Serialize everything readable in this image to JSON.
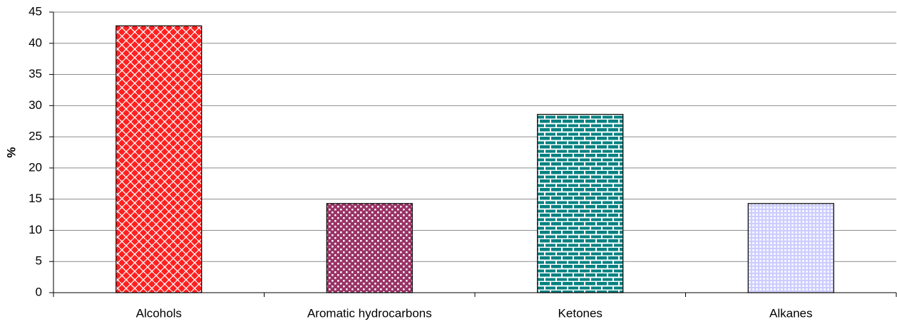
{
  "chart_data": {
    "type": "bar",
    "y_label": "%",
    "categories": [
      "Alcohols",
      "Aromatic hydrocarbons",
      "Ketones",
      "Alkanes"
    ],
    "values": [
      42.8,
      14.3,
      28.6,
      14.3
    ],
    "colors": [
      "#ff2020",
      "#993366",
      "#008080",
      "#ccccff"
    ],
    "ylim": [
      0,
      45
    ],
    "yticks": [
      0,
      5,
      10,
      15,
      20,
      25,
      30,
      35,
      40,
      45
    ],
    "grid": true
  }
}
